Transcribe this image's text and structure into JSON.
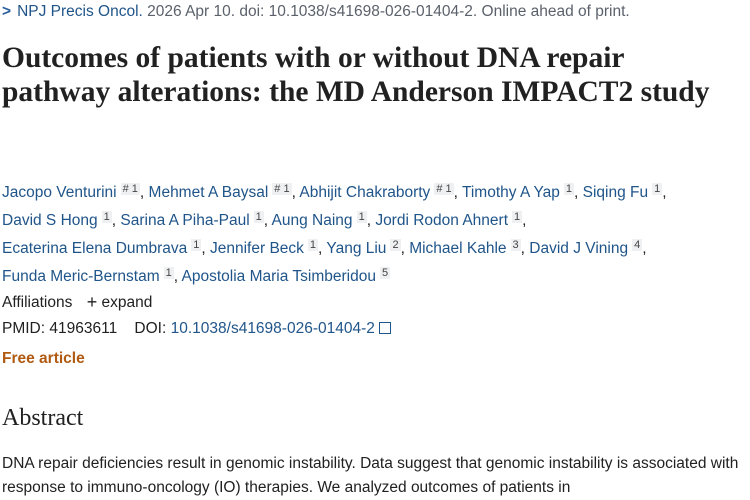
{
  "citation": {
    "journal": "NPJ Precis Oncol.",
    "rest": " 2026 Apr 10. doi: 10.1038/s41698-026-01404-2. Online ahead of print."
  },
  "title": "Outcomes of patients with or without DNA repair pathway alterations: the MD Anderson IMPACT2 study",
  "authors": [
    {
      "name": "Jacopo Venturini",
      "sup": "# 1"
    },
    {
      "name": "Mehmet A Baysal",
      "sup": "# 1"
    },
    {
      "name": "Abhijit Chakraborty",
      "sup": "# 1"
    },
    {
      "name": "Timothy A Yap",
      "sup": "1"
    },
    {
      "name": "Siqing Fu",
      "sup": "1"
    },
    {
      "name": "David S Hong",
      "sup": "1"
    },
    {
      "name": "Sarina A Piha-Paul",
      "sup": "1"
    },
    {
      "name": "Aung Naing",
      "sup": "1"
    },
    {
      "name": "Jordi Rodon Ahnert",
      "sup": "1"
    },
    {
      "name": "Ecaterina Elena Dumbrava",
      "sup": "1"
    },
    {
      "name": "Jennifer Beck",
      "sup": "1"
    },
    {
      "name": "Yang Liu",
      "sup": "2"
    },
    {
      "name": "Michael Kahle",
      "sup": "3"
    },
    {
      "name": "David J Vining",
      "sup": "4"
    },
    {
      "name": "Funda Meric-Bernstam",
      "sup": "1"
    },
    {
      "name": "Apostolia Maria Tsimberidou",
      "sup": "5"
    }
  ],
  "affiliations": {
    "label": "Affiliations",
    "expand": "expand"
  },
  "ids": {
    "pmid_label": "PMID:",
    "pmid": "41963611",
    "doi_label": "DOI:",
    "doi": "10.1038/s41698-026-01404-2"
  },
  "free_label": "Free article",
  "abstract": {
    "heading": "Abstract",
    "text": "DNA repair deficiencies result in genomic instability. Data suggest that genomic instability is associated with response to immuno-oncology (IO) therapies. We analyzed outcomes of patients in"
  }
}
